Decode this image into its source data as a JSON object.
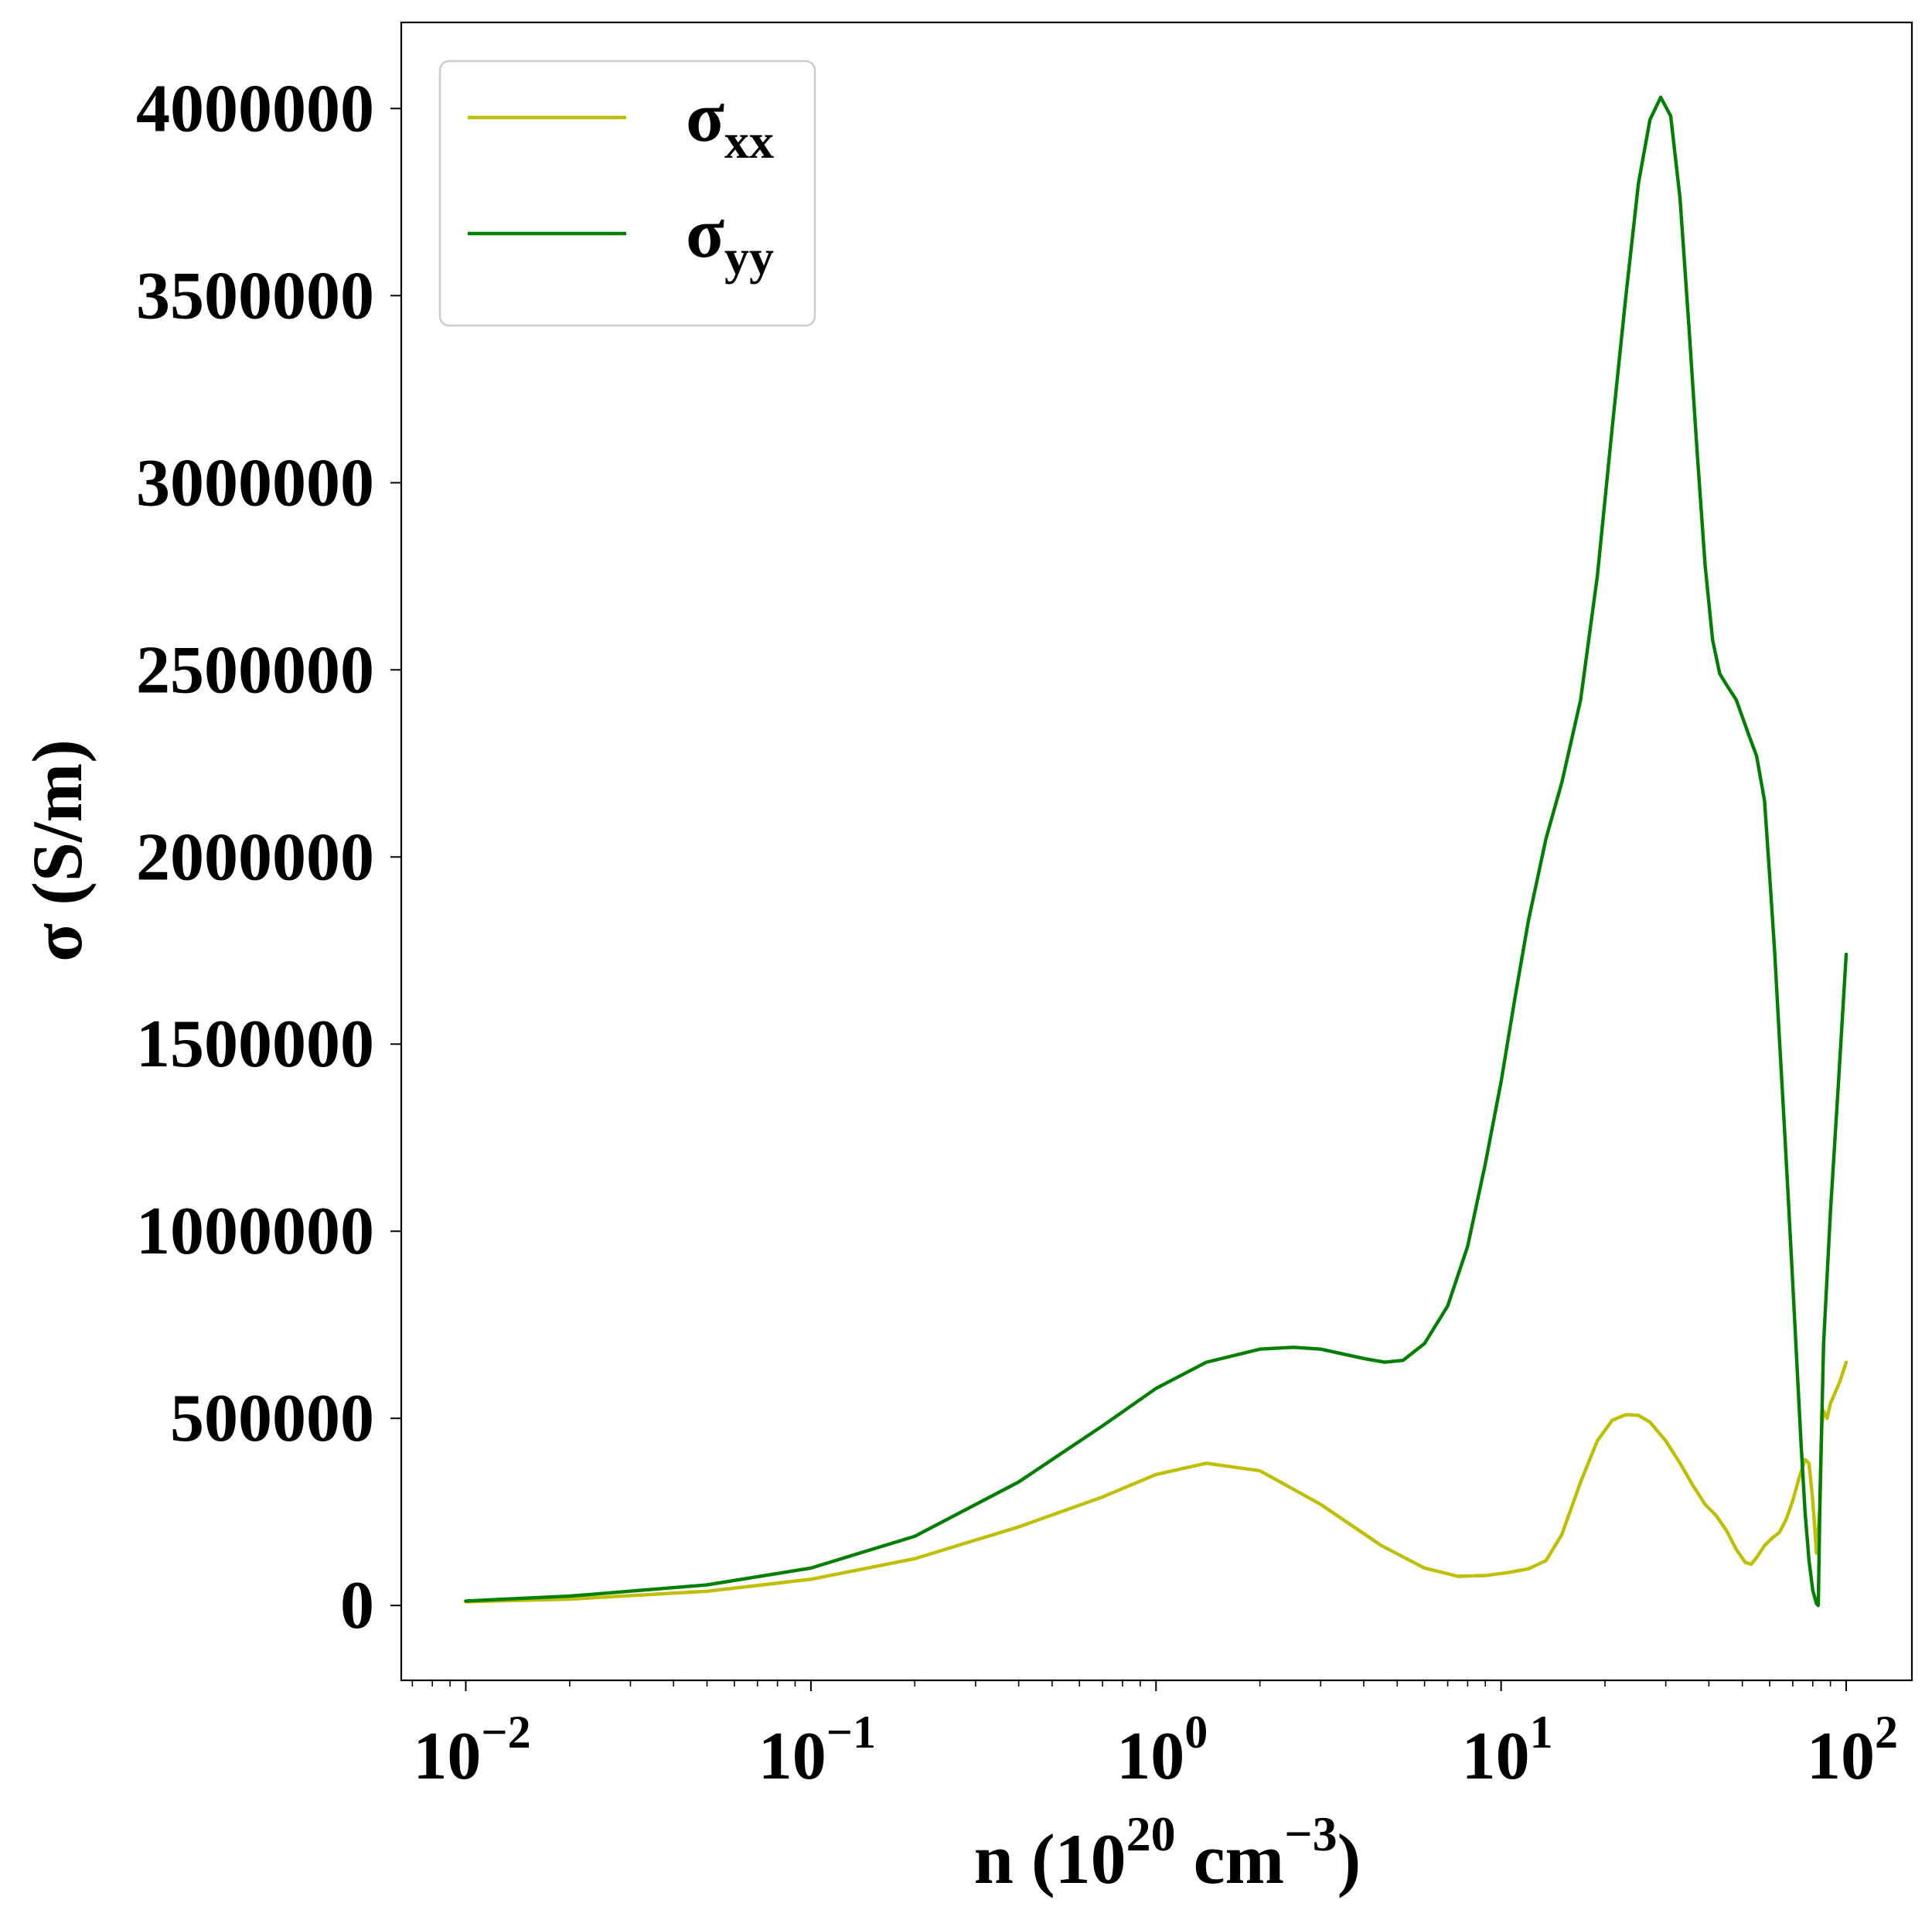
{
  "chart_data": {
    "type": "line",
    "title": "",
    "xlabel": {
      "base": "n (10",
      "exp1": "20",
      "mid": " cm",
      "exp2": "−3",
      "end": ")"
    },
    "ylabel": "σ (S/m)",
    "xscale": "log",
    "xlim": [
      0.0065,
      155
    ],
    "ylim": [
      -200000,
      4230000
    ],
    "x_ticks": [
      {
        "value": 0.01,
        "base": "10",
        "exp": "−2"
      },
      {
        "value": 0.1,
        "base": "10",
        "exp": "−1"
      },
      {
        "value": 1,
        "base": "10",
        "exp": "0"
      },
      {
        "value": 10,
        "base": "10",
        "exp": "1"
      },
      {
        "value": 100,
        "base": "10",
        "exp": "2"
      }
    ],
    "y_ticks": [
      {
        "value": 0,
        "label": "0"
      },
      {
        "value": 500000,
        "label": "500000"
      },
      {
        "value": 1000000,
        "label": "1000000"
      },
      {
        "value": 1500000,
        "label": "1500000"
      },
      {
        "value": 2000000,
        "label": "2000000"
      },
      {
        "value": 2500000,
        "label": "2500000"
      },
      {
        "value": 3000000,
        "label": "3000000"
      },
      {
        "value": 3500000,
        "label": "3500000"
      },
      {
        "value": 4000000,
        "label": "4000000"
      }
    ],
    "grid": false,
    "legend_position": "top-left",
    "series": [
      {
        "name": "σ",
        "subscript": "xx",
        "color": "#bfbf00",
        "x": [
          0.01,
          0.02,
          0.05,
          0.1,
          0.2,
          0.4,
          0.7,
          1.0,
          1.4,
          2.0,
          3.0,
          4.5,
          6.0,
          7.5,
          9.0,
          10.5,
          12.0,
          13.5,
          15.0,
          17.0,
          19.0,
          21.0,
          23.0,
          25.0,
          27.0,
          30.0,
          33.0,
          36.0,
          39.0,
          42.0,
          45.0,
          48.0,
          51.0,
          53.0,
          55.0,
          58.0,
          61.0,
          64.0,
          67.0,
          70.0,
          73.0,
          76.0,
          78.0,
          80.0,
          82.0,
          84.0,
          85.0,
          86.0,
          88.0,
          90.0,
          93.0,
          96.0,
          100.0
        ],
        "y": [
          10000,
          17000,
          38000,
          70000,
          125000,
          210000,
          290000,
          350000,
          380000,
          360000,
          270000,
          160000,
          100000,
          78000,
          80000,
          88000,
          98000,
          120000,
          190000,
          330000,
          440000,
          495000,
          510000,
          508000,
          490000,
          440000,
          380000,
          320000,
          270000,
          240000,
          200000,
          150000,
          115000,
          110000,
          128000,
          160000,
          180000,
          195000,
          230000,
          280000,
          340000,
          390000,
          380000,
          280000,
          140000,
          270000,
          480000,
          520000,
          500000,
          540000,
          570000,
          600000,
          650000
        ]
      },
      {
        "name": "σ",
        "subscript": "yy",
        "color": "#007f00",
        "x": [
          0.01,
          0.02,
          0.05,
          0.1,
          0.2,
          0.4,
          0.7,
          1.0,
          1.4,
          2.0,
          2.5,
          3.0,
          4.0,
          4.6,
          5.2,
          6.0,
          7.0,
          8.0,
          9.0,
          10.0,
          11.0,
          12.0,
          13.5,
          15.0,
          17.0,
          19.0,
          21.0,
          23.0,
          25.0,
          27.0,
          29.0,
          31.0,
          33.0,
          35.0,
          37.0,
          39.0,
          41.0,
          43.0,
          45.0,
          48.0,
          52.0,
          55.0,
          58.0,
          60.0,
          62.0,
          64.0,
          66.0,
          68.0,
          70.0,
          72.0,
          74.0,
          76.0,
          78.0,
          80.0,
          82.0,
          83.0,
          84.0,
          86.0,
          90.0,
          95.0,
          100.0
        ],
        "y": [
          12000,
          25000,
          55000,
          100000,
          185000,
          330000,
          480000,
          580000,
          650000,
          685000,
          690000,
          685000,
          660000,
          650000,
          655000,
          700000,
          800000,
          960000,
          1180000,
          1400000,
          1630000,
          1830000,
          2050000,
          2200000,
          2420000,
          2750000,
          3150000,
          3500000,
          3800000,
          3970000,
          4030000,
          3980000,
          3760000,
          3420000,
          3080000,
          2780000,
          2580000,
          2490000,
          2460000,
          2420000,
          2330000,
          2270000,
          2150000,
          1950000,
          1750000,
          1520000,
          1300000,
          1080000,
          860000,
          640000,
          430000,
          250000,
          120000,
          40000,
          5000,
          0,
          300000,
          700000,
          1050000,
          1400000,
          1740000
        ]
      }
    ]
  }
}
